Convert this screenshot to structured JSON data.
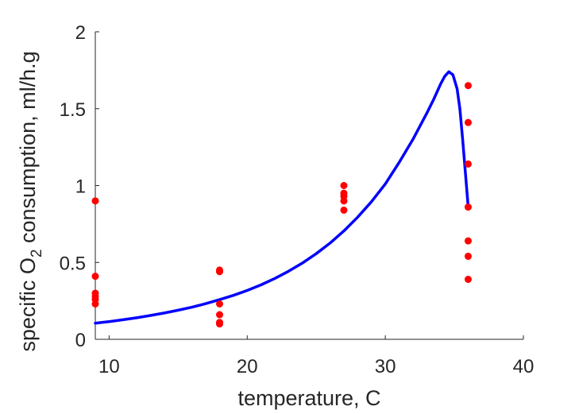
{
  "chart_data": {
    "type": "scatter",
    "title": "",
    "xlabel": "temperature, C",
    "ylabel": {
      "before": "specific O",
      "subscript": "2",
      "after": " consumption, ml/h.g"
    },
    "xlim": [
      9,
      40
    ],
    "ylim": [
      0,
      2
    ],
    "xticks": [
      10,
      20,
      30,
      40
    ],
    "yticks": [
      0,
      0.5,
      1,
      1.5,
      2
    ],
    "xtick_labels": [
      "10",
      "20",
      "30",
      "40"
    ],
    "ytick_labels": [
      "0",
      "0.5",
      "1",
      "1.5",
      "2"
    ],
    "grid": false,
    "legend": "none",
    "series": [
      {
        "kind": "points",
        "color": "#ff0000",
        "points": [
          [
            9,
            0.9
          ],
          [
            9,
            0.41
          ],
          [
            9,
            0.3
          ],
          [
            9,
            0.28
          ],
          [
            9,
            0.26
          ],
          [
            9,
            0.23
          ],
          [
            18,
            0.45
          ],
          [
            18,
            0.44
          ],
          [
            18,
            0.23
          ],
          [
            18,
            0.16
          ],
          [
            18,
            0.11
          ],
          [
            18,
            0.1
          ],
          [
            27,
            1.0
          ],
          [
            27,
            0.95
          ],
          [
            27,
            0.93
          ],
          [
            27,
            0.9
          ],
          [
            27,
            0.84
          ],
          [
            36,
            1.65
          ],
          [
            36,
            1.41
          ],
          [
            36,
            1.14
          ],
          [
            36,
            0.86
          ],
          [
            36,
            0.64
          ],
          [
            36,
            0.54
          ],
          [
            36,
            0.39
          ]
        ]
      },
      {
        "kind": "curve",
        "color": "#0000ff",
        "points": [
          [
            9,
            0.105
          ],
          [
            10,
            0.115
          ],
          [
            11,
            0.127
          ],
          [
            12,
            0.14
          ],
          [
            13,
            0.155
          ],
          [
            14,
            0.171
          ],
          [
            15,
            0.189
          ],
          [
            16,
            0.209
          ],
          [
            17,
            0.232
          ],
          [
            18,
            0.258
          ],
          [
            19,
            0.286
          ],
          [
            20,
            0.318
          ],
          [
            21,
            0.354
          ],
          [
            22,
            0.396
          ],
          [
            23,
            0.443
          ],
          [
            24,
            0.496
          ],
          [
            25,
            0.557
          ],
          [
            26,
            0.626
          ],
          [
            27,
            0.705
          ],
          [
            28,
            0.795
          ],
          [
            29,
            0.895
          ],
          [
            30,
            1.01
          ],
          [
            31,
            1.15
          ],
          [
            32,
            1.3
          ],
          [
            33,
            1.47
          ],
          [
            33.5,
            1.56
          ],
          [
            34,
            1.66
          ],
          [
            34.3,
            1.71
          ],
          [
            34.6,
            1.74
          ],
          [
            34.9,
            1.72
          ],
          [
            35.2,
            1.63
          ],
          [
            35.4,
            1.5
          ],
          [
            35.6,
            1.3
          ],
          [
            35.8,
            1.08
          ],
          [
            36,
            0.86
          ]
        ]
      }
    ]
  }
}
